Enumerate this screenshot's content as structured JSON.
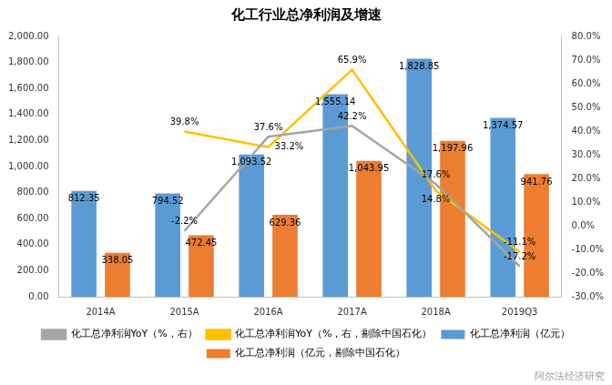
{
  "chart_data": {
    "type": "bar",
    "title": "化工行业总净利润及增速",
    "categories": [
      "2014A",
      "2015A",
      "2016A",
      "2017A",
      "2018A",
      "2019Q3"
    ],
    "series": [
      {
        "name": "化工总净利润（亿元）",
        "color": "#5B9BD5",
        "values": [
          812.35,
          794.52,
          1093.52,
          1555.14,
          1828.85,
          1374.57
        ],
        "value_labels": [
          "812.35",
          "794.52",
          "1,093.52",
          "1,555.14",
          "1,828.85",
          "1,374.57"
        ]
      },
      {
        "name": "化工总净利润（亿元，剔除中国石化）",
        "color": "#ED7D31",
        "values": [
          338.05,
          472.45,
          629.36,
          1043.95,
          1197.96,
          941.76
        ],
        "value_labels": [
          "338.05",
          "472.45",
          "629.36",
          "1,043.95",
          "1,197.96",
          "941.76"
        ]
      },
      {
        "name": "化工总净利润YoY（%，右）",
        "type": "line",
        "axis": "y2",
        "color": "#A5A5A5",
        "marker": "none",
        "values": [
          null,
          -2.2,
          37.6,
          42.2,
          17.6,
          -17.2
        ],
        "value_labels": [
          null,
          "-2.2%",
          "37.6%",
          "42.2%",
          "17.6%",
          "-17.2%"
        ]
      },
      {
        "name": "化工总净利润YoY（%，右，剔除中国石化）",
        "type": "line",
        "axis": "y2",
        "color": "#FFC000",
        "marker": "none",
        "values": [
          null,
          39.8,
          33.2,
          65.9,
          14.8,
          -11.1
        ],
        "value_labels": [
          null,
          "39.8%",
          "33.2%",
          "65.9%",
          "14.8%",
          "-11.1%"
        ]
      }
    ],
    "ylim": [
      0,
      2000
    ],
    "yticks": [
      {
        "value": 0,
        "label": "0.00"
      },
      {
        "value": 200,
        "label": "200.00"
      },
      {
        "value": 400,
        "label": "400.00"
      },
      {
        "value": 600,
        "label": "600.00"
      },
      {
        "value": 800,
        "label": "800.00"
      },
      {
        "value": 1000,
        "label": "1,000.00"
      },
      {
        "value": 1200,
        "label": "1,200.00"
      },
      {
        "value": 1400,
        "label": "1,400.00"
      },
      {
        "value": 1600,
        "label": "1,600.00"
      },
      {
        "value": 1800,
        "label": "1,800.00"
      },
      {
        "value": 2000,
        "label": "2,000.00"
      }
    ],
    "y2lim": [
      -30,
      80
    ],
    "y2ticks": [
      {
        "value": -30,
        "label": "-30.0%"
      },
      {
        "value": -20,
        "label": "-20.0%"
      },
      {
        "value": -10,
        "label": "-10.0%"
      },
      {
        "value": 0,
        "label": "0.0%"
      },
      {
        "value": 10,
        "label": "10.0%"
      },
      {
        "value": 20,
        "label": "20.0%"
      },
      {
        "value": 30,
        "label": "30.0%"
      },
      {
        "value": 40,
        "label": "40.0%"
      },
      {
        "value": 50,
        "label": "50.0%"
      },
      {
        "value": 60,
        "label": "60.0%"
      },
      {
        "value": 70,
        "label": "70.0%"
      },
      {
        "value": 80,
        "label": "80.0%"
      }
    ],
    "grid": false,
    "legend": "bottom",
    "data_labels": true,
    "annotations": [
      "阿尔法经济研究"
    ]
  }
}
